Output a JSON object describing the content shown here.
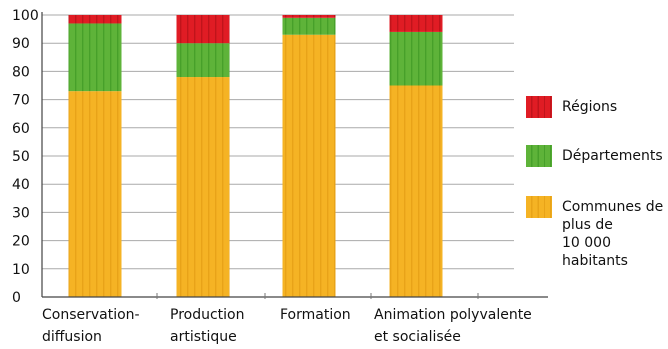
{
  "chart_data": {
    "type": "bar",
    "stacked": true,
    "categories": [
      [
        "Conservation-",
        "diffusion"
      ],
      [
        "Production",
        "artistique"
      ],
      [
        "Formation"
      ],
      [
        "Animation polyvalente",
        "et socialisée"
      ]
    ],
    "series": [
      {
        "name": "Communes de plus de 10 000 habitants",
        "name_lines": [
          "Communes de",
          "plus de",
          "10 000",
          "habitants"
        ],
        "color": "#f5b324",
        "stripe": "#e8a318",
        "values": [
          73,
          78,
          93,
          75
        ]
      },
      {
        "name": "Départements",
        "name_lines": [
          "Départements"
        ],
        "color": "#5eb339",
        "stripe": "#47a02a",
        "values": [
          24,
          12,
          6,
          19
        ]
      },
      {
        "name": "Régions",
        "name_lines": [
          "Régions"
        ],
        "color": "#e01c24",
        "stripe": "#c0141b",
        "values": [
          3,
          10,
          1,
          6
        ]
      }
    ],
    "yticks": [
      "0",
      "10",
      "20",
      "30",
      "40",
      "50",
      "60",
      "70",
      "80",
      "90",
      "100"
    ],
    "ylim": [
      0,
      100
    ],
    "grid": true,
    "legend_position": "right",
    "legend_order": [
      2,
      1,
      0
    ]
  }
}
